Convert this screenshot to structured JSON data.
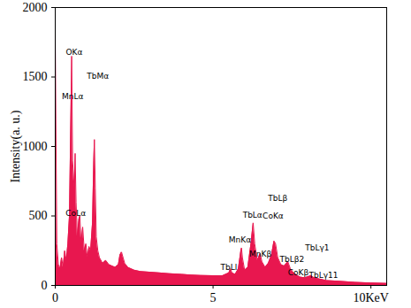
{
  "chart_data": {
    "type": "area",
    "color": "#e8174f",
    "y_label": "Intensity(a. u.)",
    "xlim": [
      0,
      10.5
    ],
    "xticks": [
      0,
      5,
      {
        "value": 10,
        "label": "10KeV"
      }
    ],
    "ylim": [
      0,
      2000
    ],
    "yticks": [
      0,
      500,
      1000,
      1500,
      2000
    ],
    "x": [
      0,
      0.02,
      0.05,
      0.1,
      0.15,
      0.2,
      0.25,
      0.3,
      0.35,
      0.4,
      0.45,
      0.5,
      0.52,
      0.55,
      0.6,
      0.63,
      0.66,
      0.7,
      0.75,
      0.78,
      0.82,
      0.87,
      0.92,
      0.97,
      1.02,
      1.07,
      1.12,
      1.18,
      1.22,
      1.24,
      1.27,
      1.3,
      1.35,
      1.4,
      1.5,
      1.6,
      1.7,
      1.8,
      1.9,
      2.0,
      2.05,
      2.1,
      2.15,
      2.2,
      2.3,
      2.5,
      2.7,
      3.0,
      3.3,
      3.6,
      4.0,
      4.3,
      4.6,
      5.0,
      5.3,
      5.5,
      5.55,
      5.6,
      5.7,
      5.8,
      5.88,
      5.9,
      5.93,
      6.0,
      6.1,
      6.2,
      6.27,
      6.32,
      6.4,
      6.49,
      6.55,
      6.65,
      6.75,
      6.85,
      6.93,
      6.98,
      7.05,
      7.15,
      7.25,
      7.37,
      7.45,
      7.55,
      7.65,
      7.75,
      7.9,
      8.1,
      8.2,
      8.4,
      8.6,
      9.0,
      9.5,
      10.0,
      10.5
    ],
    "values": [
      1820,
      1200,
      300,
      150,
      120,
      200,
      130,
      250,
      180,
      300,
      500,
      1300,
      1650,
      900,
      700,
      950,
      600,
      350,
      480,
      500,
      300,
      420,
      250,
      300,
      200,
      280,
      250,
      450,
      900,
      1050,
      700,
      350,
      250,
      200,
      160,
      180,
      150,
      140,
      130,
      150,
      220,
      240,
      200,
      160,
      130,
      110,
      100,
      95,
      90,
      85,
      80,
      75,
      72,
      70,
      70,
      90,
      120,
      90,
      80,
      120,
      250,
      270,
      200,
      110,
      130,
      300,
      450,
      300,
      180,
      230,
      170,
      130,
      160,
      220,
      320,
      300,
      200,
      150,
      140,
      170,
      120,
      90,
      75,
      60,
      55,
      70,
      55,
      45,
      35,
      30,
      22,
      18,
      15
    ],
    "annotations": [
      {
        "text": "OKα",
        "x": 0.6,
        "y": 1660
      },
      {
        "text": "MnLα",
        "x": 0.55,
        "y": 1340
      },
      {
        "text": "CoLα",
        "x": 0.65,
        "y": 500
      },
      {
        "text": "TbMα",
        "x": 1.35,
        "y": 1490
      },
      {
        "text": "TbLl",
        "x": 5.5,
        "y": 110
      },
      {
        "text": "MnKα",
        "x": 5.85,
        "y": 310
      },
      {
        "text": "TbLα",
        "x": 6.25,
        "y": 490
      },
      {
        "text": "MnKβ",
        "x": 6.5,
        "y": 210
      },
      {
        "text": "TbLβ",
        "x": 7.05,
        "y": 610
      },
      {
        "text": "CoKα",
        "x": 6.9,
        "y": 480
      },
      {
        "text": "TbLβ2",
        "x": 7.5,
        "y": 170
      },
      {
        "text": "CoKβ",
        "x": 7.7,
        "y": 75
      },
      {
        "text": "TbLγ1",
        "x": 8.3,
        "y": 250
      },
      {
        "text": "TbLγ11",
        "x": 8.5,
        "y": 57
      }
    ]
  }
}
